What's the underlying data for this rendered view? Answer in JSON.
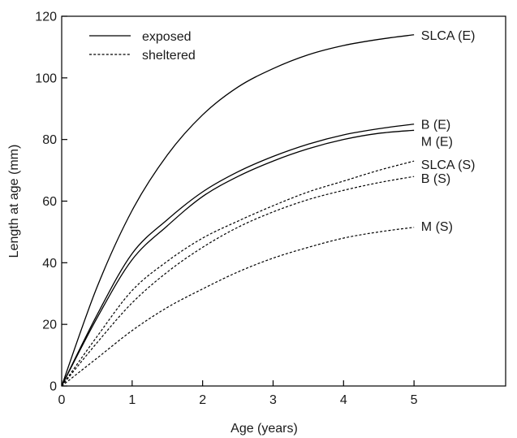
{
  "chart_data": {
    "type": "line",
    "xlabel": "Age (years)",
    "ylabel": "Length at age (mm)",
    "xlim": [
      0,
      6.3
    ],
    "ylim": [
      0,
      120
    ],
    "x_ticks": [
      0,
      1,
      2,
      3,
      4,
      5
    ],
    "y_ticks": [
      0,
      20,
      40,
      60,
      80,
      100,
      120
    ],
    "grid": false,
    "legend": {
      "placement": "top-left",
      "entries": [
        {
          "label": "exposed",
          "style": "solid"
        },
        {
          "label": "sheltered",
          "style": "dashed"
        }
      ]
    },
    "series": [
      {
        "name": "SLCA (E)",
        "style": "solid",
        "x": [
          0,
          0.5,
          1,
          1.5,
          2,
          2.5,
          3,
          3.5,
          4,
          4.5,
          5
        ],
        "y": [
          0,
          32,
          57,
          75,
          88,
          97,
          103,
          107.5,
          110.5,
          112.5,
          114
        ]
      },
      {
        "name": "B (E)",
        "style": "solid",
        "x": [
          0,
          0.5,
          1,
          1.5,
          2,
          2.5,
          3,
          3.5,
          4,
          4.5,
          5
        ],
        "y": [
          0,
          23,
          43,
          54,
          63,
          69.5,
          74.5,
          78.5,
          81.5,
          83.5,
          85
        ]
      },
      {
        "name": "M (E)",
        "style": "solid",
        "x": [
          0,
          0.5,
          1,
          1.5,
          2,
          2.5,
          3,
          3.5,
          4,
          4.5,
          5
        ],
        "y": [
          0,
          22,
          41,
          52,
          61.5,
          68,
          73,
          77,
          80,
          82,
          83
        ]
      },
      {
        "name": "SLCA (S)",
        "style": "dashed",
        "x": [
          0,
          0.5,
          1,
          1.5,
          2,
          2.5,
          3,
          3.5,
          4,
          4.5,
          5
        ],
        "y": [
          0,
          16,
          31,
          40.5,
          48,
          53.5,
          58.5,
          63,
          66.5,
          70,
          73
        ]
      },
      {
        "name": "B (S)",
        "style": "dashed",
        "x": [
          0,
          0.5,
          1,
          1.5,
          2,
          2.5,
          3,
          3.5,
          4,
          4.5,
          5
        ],
        "y": [
          0,
          14,
          27,
          37,
          45,
          51.5,
          56.5,
          60.5,
          63.5,
          66,
          68
        ]
      },
      {
        "name": "M (S)",
        "style": "dashed",
        "x": [
          0,
          0.5,
          1,
          1.5,
          2,
          2.5,
          3,
          3.5,
          4,
          4.5,
          5
        ],
        "y": [
          0,
          9,
          18,
          25.5,
          31.5,
          37,
          41.5,
          45,
          48,
          50,
          51.5
        ]
      }
    ],
    "curve_labels": [
      {
        "text": "SLCA (E)",
        "x": 5.1,
        "y": 114
      },
      {
        "text": "B (E)",
        "x": 5.1,
        "y": 85
      },
      {
        "text": "M (E)",
        "x": 5.1,
        "y": 79.5
      },
      {
        "text": "SLCA (S)",
        "x": 5.1,
        "y": 72
      },
      {
        "text": "B (S)",
        "x": 5.1,
        "y": 67.5
      },
      {
        "text": "M (S)",
        "x": 5.1,
        "y": 52
      }
    ]
  }
}
